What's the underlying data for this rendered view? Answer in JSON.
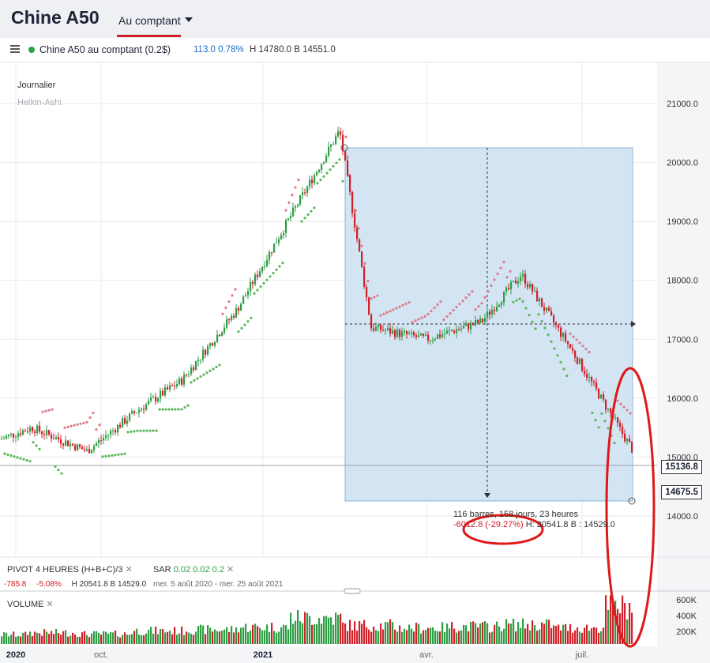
{
  "header": {
    "title": "Chine A50",
    "tab_label": "Au comptant"
  },
  "infobar": {
    "instrument": "Chine A50 au comptant (0.2$)",
    "change": "113.0",
    "change_pct": "0.78%",
    "high": "H 14780.0",
    "low": "B 14551.0"
  },
  "panel": {
    "timeframe": "Journalier",
    "chart_style": "Heikin-Ashi"
  },
  "prices": {
    "last": "15136.8",
    "measure_low": "14675.5"
  },
  "measure": {
    "line1": "116 barres, 158 jours, 23 heures",
    "line2_change": "-6012.8 (-29.27%)",
    "line2_hl": "H: 20541.8 B : 14529.0"
  },
  "indicators": {
    "pivot_label": "PIVOT",
    "pivot_params": "4 HEURES (H+B+C)/3",
    "sar_label": "SAR",
    "sar_params": [
      "0.02",
      "0.02",
      "0.2"
    ],
    "stat_change": "-785.8",
    "stat_pct": "-5.08%",
    "stat_high": "H 20541.8",
    "stat_low": "B 14529.0",
    "stat_range": "mer. 5 août 2020 - mer. 25 août 2021"
  },
  "volume": {
    "label": "VOLUME",
    "ticks": [
      "600K",
      "400K",
      "200K"
    ]
  },
  "colors": {
    "up": "#2e9e44",
    "down": "#d0202a",
    "sar_up": "#5cb85c",
    "sar_down": "#e07a8a",
    "measure_box": "#d3e4f3",
    "annotation": "#e01818"
  },
  "chart_data": {
    "type": "candlestick",
    "title": "Chine A50",
    "ylim": [
      13300,
      21700
    ],
    "y_ticks": [
      "21000.0",
      "20000.0",
      "19000.0",
      "18000.0",
      "17000.0",
      "16000.0",
      "15000.0",
      "14000.0"
    ],
    "x_ticks": [
      "2020",
      "oct.",
      "2021",
      "avr.",
      "juil."
    ],
    "series": [
      {
        "name": "Heikin-Ashi",
        "x": [
          "2020-08",
          "2020-09",
          "2020-10",
          "2020-11",
          "2020-12",
          "2021-01",
          "2021-02",
          "2021-03",
          "2021-04",
          "2021-05",
          "2021-06",
          "2021-07",
          "2021-08"
        ],
        "values": [
          15300,
          15500,
          15100,
          15800,
          16300,
          17500,
          20541.8,
          17200,
          17000,
          17300,
          18100,
          16900,
          15136.8
        ]
      },
      {
        "name": "VOLUME",
        "values": [
          150000,
          180000,
          160000,
          210000,
          230000,
          270000,
          420000,
          300000,
          260000,
          280000,
          310000,
          260000,
          600000
        ]
      }
    ]
  }
}
